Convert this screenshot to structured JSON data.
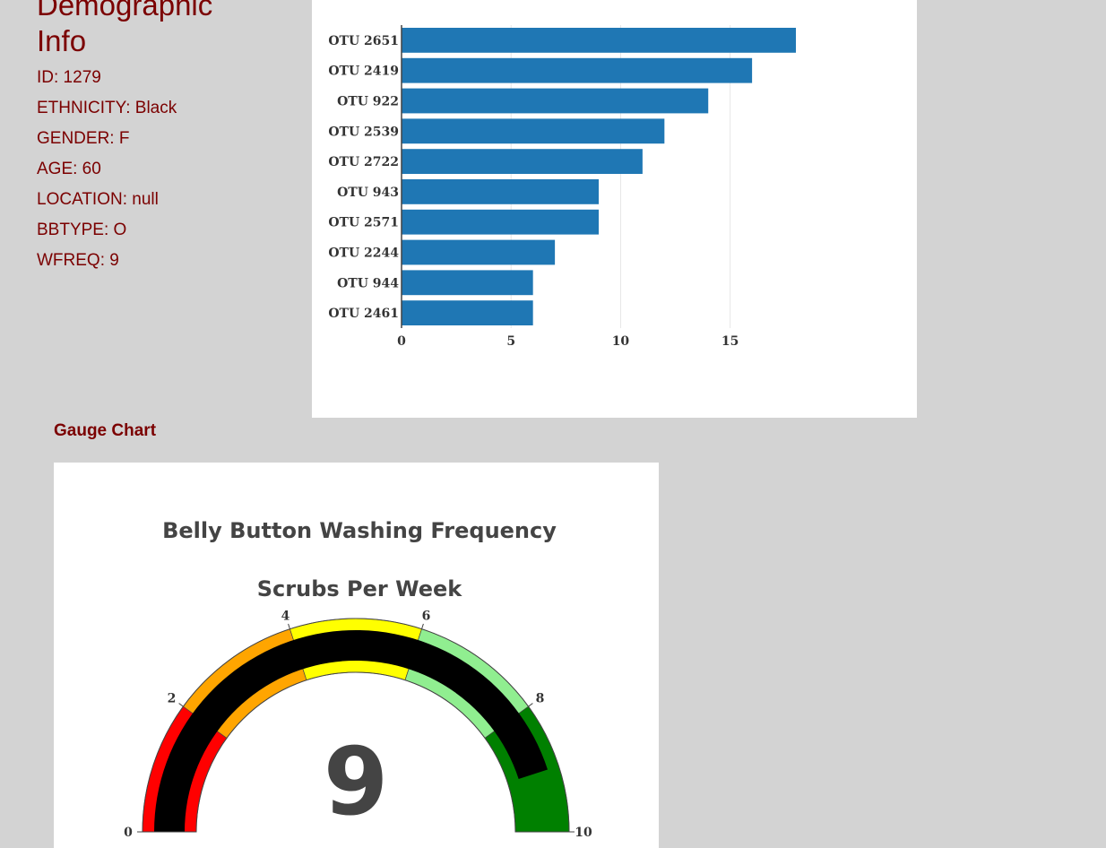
{
  "demographics": {
    "title": "Demographic Info",
    "lines": [
      "ID: 1279",
      "ETHNICITY: Black",
      "GENDER: F",
      "AGE: 60",
      "LOCATION: null",
      "BBTYPE: O",
      "WFREQ: 9"
    ]
  },
  "gauge_heading": "Gauge Chart",
  "colors": {
    "bar": "#1f77b4",
    "heading": "#7b0000",
    "gauge_bands": [
      "#ff0000",
      "#ffa500",
      "#ffff00",
      "#90ee90",
      "#008000"
    ],
    "gauge_needle_bar": "#000000"
  },
  "chart_data": [
    {
      "type": "bar",
      "orientation": "horizontal",
      "categories": [
        "OTU 2651",
        "OTU 2419",
        "OTU 922",
        "OTU 2539",
        "OTU 2722",
        "OTU 943",
        "OTU 2571",
        "OTU 2244",
        "OTU 944",
        "OTU 2461"
      ],
      "values": [
        18,
        16,
        14,
        12,
        11,
        9,
        9,
        7,
        6,
        6
      ],
      "xticks": [
        0,
        5,
        10,
        15
      ],
      "xlim": [
        0,
        22.5
      ],
      "grid": true
    },
    {
      "type": "gauge",
      "title": "Belly Button Washing Frequency",
      "subtitle": "Scrubs Per Week",
      "value": 9,
      "range": [
        0,
        10
      ],
      "ticks": [
        0,
        2,
        4,
        6,
        8,
        10
      ],
      "bands": [
        {
          "from": 0,
          "to": 2,
          "color": "#ff0000"
        },
        {
          "from": 2,
          "to": 4,
          "color": "#ffa500"
        },
        {
          "from": 4,
          "to": 6,
          "color": "#ffff00"
        },
        {
          "from": 6,
          "to": 8,
          "color": "#90ee90"
        },
        {
          "from": 8,
          "to": 10,
          "color": "#008000"
        }
      ]
    }
  ]
}
